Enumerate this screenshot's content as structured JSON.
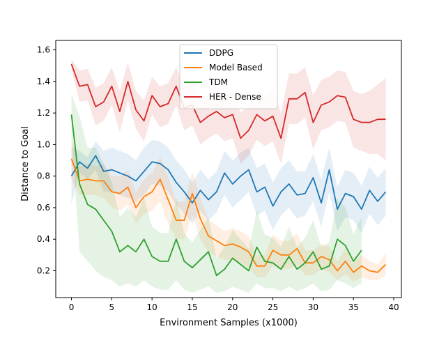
{
  "chart_data": {
    "type": "line",
    "title": "",
    "xlabel": "Environment Samples (x1000)",
    "ylabel": "Distance to Goal",
    "xlim": [
      -1.95,
      40.95
    ],
    "ylim": [
      0.03,
      1.66
    ],
    "xticks": [
      0,
      5,
      10,
      15,
      20,
      25,
      30,
      35,
      40
    ],
    "yticks": [
      0.2,
      0.4,
      0.6,
      0.8,
      1.0,
      1.2,
      1.4,
      1.6
    ],
    "xtick_labels": [
      "0",
      "5",
      "10",
      "15",
      "20",
      "25",
      "30",
      "35",
      "40"
    ],
    "ytick_labels": [
      "0.2",
      "0.4",
      "0.6",
      "0.8",
      "1.0",
      "1.2",
      "1.4",
      "1.6"
    ],
    "grid": false,
    "legend_position": "top-center",
    "series": [
      {
        "name": "DDPG",
        "color": "#1f77b4",
        "x": [
          0,
          1,
          2,
          3,
          4,
          5,
          6,
          7,
          8,
          9,
          10,
          11,
          12,
          13,
          14,
          15,
          16,
          17,
          18,
          19,
          20,
          21,
          22,
          23,
          24,
          25,
          26,
          27,
          28,
          29,
          30,
          31,
          32,
          33,
          34,
          35,
          36,
          37,
          38,
          39
        ],
        "y": [
          0.8,
          0.89,
          0.85,
          0.93,
          0.83,
          0.84,
          0.82,
          0.8,
          0.77,
          0.83,
          0.89,
          0.88,
          0.84,
          0.76,
          0.7,
          0.63,
          0.71,
          0.65,
          0.7,
          0.82,
          0.75,
          0.8,
          0.84,
          0.7,
          0.73,
          0.61,
          0.7,
          0.75,
          0.68,
          0.69,
          0.79,
          0.63,
          0.84,
          0.59,
          0.69,
          0.67,
          0.59,
          0.71,
          0.64,
          0.7
        ],
        "lower": [
          0.62,
          0.82,
          0.78,
          0.84,
          0.7,
          0.7,
          0.68,
          0.66,
          0.64,
          0.68,
          0.75,
          0.74,
          0.7,
          0.62,
          0.56,
          0.5,
          0.58,
          0.52,
          0.57,
          0.68,
          0.6,
          0.65,
          0.7,
          0.55,
          0.58,
          0.46,
          0.55,
          0.6,
          0.53,
          0.55,
          0.64,
          0.48,
          0.7,
          0.45,
          0.54,
          0.52,
          0.44,
          0.56,
          0.49,
          0.55
        ],
        "upper": [
          0.98,
          0.96,
          0.92,
          1.02,
          0.96,
          0.98,
          0.96,
          0.94,
          0.9,
          0.98,
          1.03,
          1.02,
          0.98,
          0.9,
          0.84,
          0.76,
          0.84,
          0.78,
          0.83,
          0.96,
          0.9,
          0.95,
          0.98,
          0.85,
          0.88,
          0.76,
          0.85,
          0.9,
          0.83,
          0.83,
          0.94,
          0.78,
          0.98,
          0.73,
          0.84,
          0.82,
          0.74,
          0.86,
          0.79,
          0.85
        ]
      },
      {
        "name": "Model Based",
        "color": "#ff7f0e",
        "x": [
          0,
          1,
          2,
          3,
          4,
          5,
          6,
          7,
          8,
          9,
          10,
          11,
          12,
          13,
          14,
          15,
          16,
          17,
          18,
          19,
          20,
          21,
          22,
          23,
          24,
          25,
          26,
          27,
          28,
          29,
          30,
          31,
          32,
          33,
          34,
          35,
          36,
          37,
          38,
          39
        ],
        "y": [
          0.91,
          0.77,
          0.78,
          0.77,
          0.77,
          0.7,
          0.69,
          0.73,
          0.6,
          0.67,
          0.7,
          0.78,
          0.65,
          0.52,
          0.52,
          0.69,
          0.53,
          0.42,
          0.39,
          0.36,
          0.37,
          0.35,
          0.32,
          0.23,
          0.23,
          0.33,
          0.3,
          0.3,
          0.34,
          0.25,
          0.25,
          0.29,
          0.27,
          0.2,
          0.26,
          0.19,
          0.23,
          0.2,
          0.19,
          0.24
        ],
        "lower": [
          0.78,
          0.68,
          0.68,
          0.68,
          0.66,
          0.6,
          0.58,
          0.62,
          0.5,
          0.56,
          0.58,
          0.64,
          0.5,
          0.4,
          0.4,
          0.55,
          0.4,
          0.32,
          0.29,
          0.27,
          0.27,
          0.25,
          0.22,
          0.16,
          0.16,
          0.23,
          0.21,
          0.21,
          0.24,
          0.17,
          0.17,
          0.21,
          0.19,
          0.14,
          0.18,
          0.13,
          0.16,
          0.14,
          0.14,
          0.17
        ],
        "upper": [
          1.04,
          0.86,
          0.88,
          0.86,
          0.88,
          0.8,
          0.8,
          0.84,
          0.7,
          0.78,
          0.82,
          0.92,
          0.8,
          0.64,
          0.64,
          0.83,
          0.66,
          0.52,
          0.49,
          0.45,
          0.47,
          0.45,
          0.42,
          0.3,
          0.3,
          0.43,
          0.39,
          0.39,
          0.44,
          0.33,
          0.33,
          0.37,
          0.35,
          0.26,
          0.34,
          0.25,
          0.3,
          0.26,
          0.24,
          0.31
        ]
      },
      {
        "name": "TDM",
        "color": "#2ca02c",
        "x": [
          0,
          1,
          2,
          3,
          4,
          5,
          6,
          7,
          8,
          9,
          10,
          11,
          12,
          13,
          14,
          15,
          16,
          17,
          18,
          19,
          20,
          21,
          22,
          23,
          24,
          25,
          26,
          27,
          28,
          29,
          30,
          31,
          32,
          33,
          34,
          35,
          36
        ],
        "y": [
          1.19,
          0.75,
          0.62,
          0.59,
          0.52,
          0.45,
          0.32,
          0.36,
          0.32,
          0.4,
          0.29,
          0.26,
          0.26,
          0.4,
          0.26,
          0.22,
          0.27,
          0.32,
          0.17,
          0.21,
          0.28,
          0.24,
          0.2,
          0.35,
          0.26,
          0.25,
          0.21,
          0.29,
          0.21,
          0.25,
          0.32,
          0.21,
          0.23,
          0.4,
          0.36,
          0.26,
          0.33
        ],
        "lower": [
          1.06,
          0.32,
          0.26,
          0.2,
          0.16,
          0.14,
          0.1,
          0.12,
          0.1,
          0.14,
          0.1,
          0.08,
          0.08,
          0.14,
          0.08,
          0.06,
          0.08,
          0.1,
          0.06,
          0.07,
          0.1,
          0.08,
          0.06,
          0.12,
          0.09,
          0.09,
          0.07,
          0.1,
          0.07,
          0.09,
          0.12,
          0.07,
          0.08,
          0.14,
          0.12,
          0.09,
          0.12
        ],
        "upper": [
          1.32,
          1.18,
          0.98,
          0.98,
          0.88,
          0.76,
          0.54,
          0.6,
          0.54,
          0.66,
          0.48,
          0.44,
          0.44,
          0.66,
          0.44,
          0.38,
          0.46,
          0.54,
          0.28,
          0.35,
          0.46,
          0.4,
          0.34,
          0.58,
          0.43,
          0.41,
          0.35,
          0.48,
          0.35,
          0.41,
          0.52,
          0.35,
          0.38,
          0.66,
          0.6,
          0.43,
          0.54
        ]
      },
      {
        "name": "HER - Dense",
        "color": "#d62728",
        "x": [
          0,
          1,
          2,
          3,
          4,
          5,
          6,
          7,
          8,
          9,
          10,
          11,
          12,
          13,
          14,
          15,
          16,
          17,
          18,
          19,
          20,
          21,
          22,
          23,
          24,
          25,
          26,
          27,
          28,
          29,
          30,
          31,
          32,
          33,
          34,
          35,
          36,
          37,
          38,
          39
        ],
        "y": [
          1.51,
          1.37,
          1.38,
          1.24,
          1.27,
          1.37,
          1.21,
          1.4,
          1.22,
          1.15,
          1.31,
          1.24,
          1.26,
          1.37,
          1.23,
          1.25,
          1.14,
          1.18,
          1.21,
          1.17,
          1.19,
          1.04,
          1.09,
          1.19,
          1.15,
          1.18,
          1.04,
          1.29,
          1.29,
          1.33,
          1.14,
          1.25,
          1.27,
          1.31,
          1.3,
          1.16,
          1.14,
          1.14,
          1.16,
          1.16
        ],
        "lower": [
          1.48,
          1.27,
          1.28,
          1.12,
          1.15,
          1.25,
          1.08,
          1.28,
          1.1,
          1.02,
          1.19,
          1.11,
          1.13,
          1.25,
          1.09,
          1.12,
          1.0,
          1.04,
          1.07,
          1.02,
          1.04,
          0.88,
          0.93,
          1.03,
          0.99,
          1.02,
          0.88,
          1.13,
          1.13,
          1.17,
          0.97,
          1.09,
          1.11,
          1.15,
          1.14,
          0.98,
          0.96,
          0.94,
          0.94,
          0.9
        ],
        "upper": [
          1.54,
          1.47,
          1.48,
          1.36,
          1.39,
          1.49,
          1.34,
          1.52,
          1.34,
          1.28,
          1.43,
          1.37,
          1.39,
          1.49,
          1.37,
          1.38,
          1.28,
          1.32,
          1.35,
          1.32,
          1.34,
          1.2,
          1.25,
          1.35,
          1.31,
          1.34,
          1.2,
          1.45,
          1.45,
          1.49,
          1.31,
          1.41,
          1.43,
          1.47,
          1.46,
          1.34,
          1.32,
          1.34,
          1.38,
          1.42
        ]
      }
    ]
  }
}
